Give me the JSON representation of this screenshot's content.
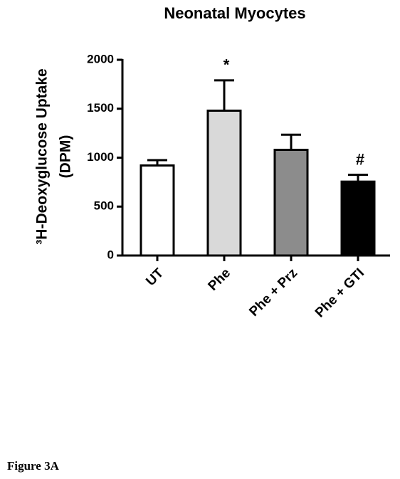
{
  "chart_data": {
    "type": "bar",
    "title": "Neonatal Myocytes",
    "y_label": [
      "³H-Deoxyglucose  Uptake",
      "(DPM)"
    ],
    "categories": [
      "UT",
      "Phe",
      "Phe + Prz",
      "Phe + GTI"
    ],
    "values": [
      920,
      1480,
      1080,
      755
    ],
    "errors": [
      55,
      310,
      155,
      70
    ],
    "colors": [
      "#ffffff",
      "#d9d9d9",
      "#8c8c8c",
      "#000000"
    ],
    "annotations": [
      null,
      "*",
      null,
      "#"
    ],
    "ylim": [
      0,
      2000
    ],
    "yticks": [
      0,
      500,
      1000,
      1500,
      2000
    ],
    "grid": false
  },
  "caption": "Figure 3A"
}
